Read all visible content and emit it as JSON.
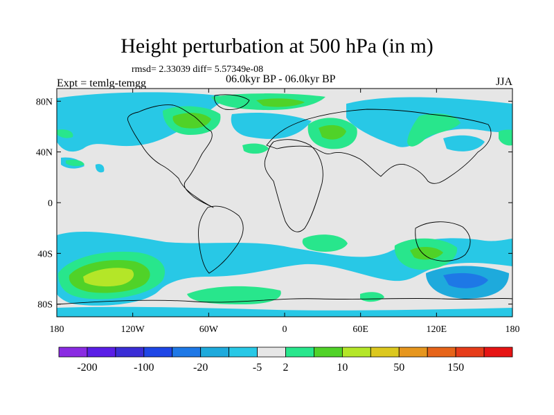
{
  "title": "Height perturbation at 500 hPa (in m)",
  "stats": "rmsd= 2.33039 diff= 5.57349e-08",
  "experiment": "Expt = temlg-temgg",
  "period": "06.0kyr BP - 06.0kyr BP",
  "season": "JJA",
  "map": {
    "projection": "cylindrical-equidistant",
    "lon_range": [
      -180,
      180
    ],
    "lat_range": [
      -90,
      90
    ],
    "background": "#e6e6e6",
    "lat_ticks": [
      {
        "value": 80,
        "label": "80N"
      },
      {
        "value": 40,
        "label": "40N"
      },
      {
        "value": 0,
        "label": "0"
      },
      {
        "value": -40,
        "label": "40S"
      },
      {
        "value": -80,
        "label": "80S"
      }
    ],
    "lon_ticks": [
      {
        "value": -180,
        "label": "180"
      },
      {
        "value": -120,
        "label": "120W"
      },
      {
        "value": -60,
        "label": "60W"
      },
      {
        "value": 0,
        "label": "0"
      },
      {
        "value": 60,
        "label": "60E"
      },
      {
        "value": 120,
        "label": "120E"
      },
      {
        "value": 180,
        "label": "180"
      }
    ]
  },
  "colorbar": {
    "colors": [
      "#8a2be2",
      "#5a1ee6",
      "#3a2dd6",
      "#1e46e6",
      "#1e78e6",
      "#1eaadc",
      "#28c8e6",
      "#e6e6e6",
      "#28e68c",
      "#50d228",
      "#b4e628",
      "#dcc81e",
      "#e6961e",
      "#e66419",
      "#e63c19",
      "#e61414"
    ],
    "labels": [
      {
        "index": 1,
        "text": "-200"
      },
      {
        "index": 3,
        "text": "-100"
      },
      {
        "index": 5,
        "text": "-20"
      },
      {
        "index": 7,
        "text": "-5"
      },
      {
        "index": 8,
        "text": "2"
      },
      {
        "index": 10,
        "text": "10"
      },
      {
        "index": 12,
        "text": "50"
      },
      {
        "index": 14,
        "text": "150"
      }
    ]
  }
}
